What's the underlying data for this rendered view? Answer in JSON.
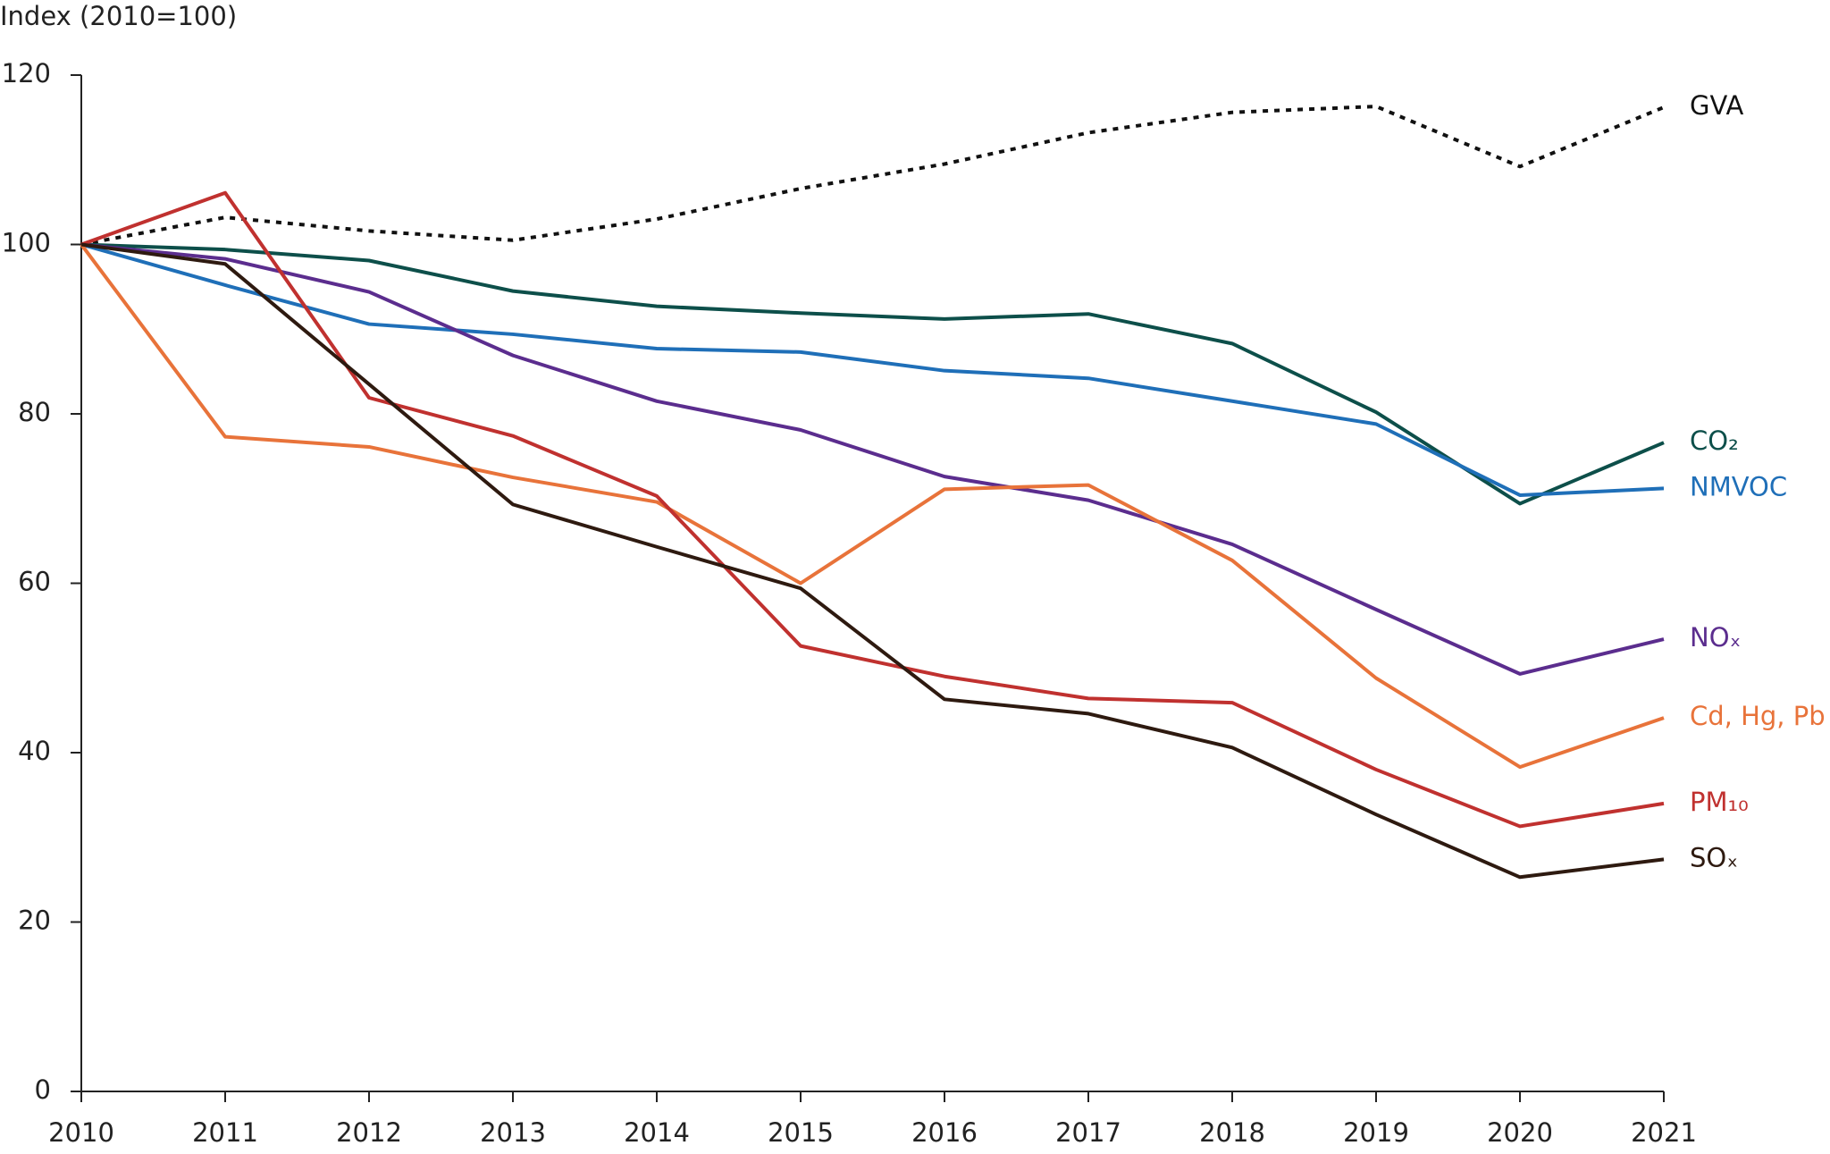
{
  "chart_data": {
    "type": "line",
    "y_label": "Index (2010=100)",
    "x": [
      2010,
      2011,
      2012,
      2013,
      2014,
      2015,
      2016,
      2017,
      2018,
      2019,
      2020,
      2021
    ],
    "xlim": [
      2010,
      2021
    ],
    "xticks": [
      2010,
      2011,
      2012,
      2013,
      2014,
      2015,
      2016,
      2017,
      2018,
      2019,
      2020,
      2021
    ],
    "ylim": [
      0,
      120
    ],
    "yticks": [
      0,
      20,
      40,
      60,
      80,
      100,
      120
    ],
    "grid": false,
    "series": [
      {
        "name": "GVA",
        "color": "#111111",
        "dashed": true,
        "values": [
          100,
          103.2,
          101.6,
          100.5,
          103.0,
          106.6,
          109.5,
          113.2,
          115.6,
          116.3,
          109.2,
          116.2
        ]
      },
      {
        "name": "CO₂",
        "color": "#0d4f4a",
        "values": [
          100,
          99.4,
          98.1,
          94.5,
          92.7,
          91.9,
          91.2,
          91.8,
          88.3,
          80.2,
          69.4,
          76.6
        ]
      },
      {
        "name": "NMVOC",
        "color": "#1f6fb8",
        "values": [
          100,
          95.2,
          90.6,
          89.4,
          87.7,
          87.3,
          85.1,
          84.2,
          81.5,
          78.8,
          70.4,
          71.2
        ]
      },
      {
        "name": "NOₓ",
        "color": "#5b2d8e",
        "values": [
          100,
          98.3,
          94.4,
          86.9,
          81.5,
          78.1,
          72.6,
          69.8,
          64.6,
          56.9,
          49.3,
          53.4
        ]
      },
      {
        "name": "Cd, Hg, Pb",
        "color": "#e8733a",
        "values": [
          100,
          77.3,
          76.1,
          72.5,
          69.6,
          60.0,
          71.1,
          71.6,
          62.7,
          48.8,
          38.3,
          44.1
        ]
      },
      {
        "name": "PM₁₀",
        "color": "#c0312f",
        "values": [
          100,
          106.1,
          81.9,
          77.4,
          70.3,
          52.6,
          49.0,
          46.4,
          45.9,
          38.0,
          31.3,
          34.0
        ]
      },
      {
        "name": "SOₓ",
        "color": "#2e1a10",
        "values": [
          100,
          97.7,
          83.5,
          69.3,
          64.3,
          59.4,
          46.3,
          44.6,
          40.6,
          32.7,
          25.3,
          27.4
        ]
      }
    ]
  }
}
